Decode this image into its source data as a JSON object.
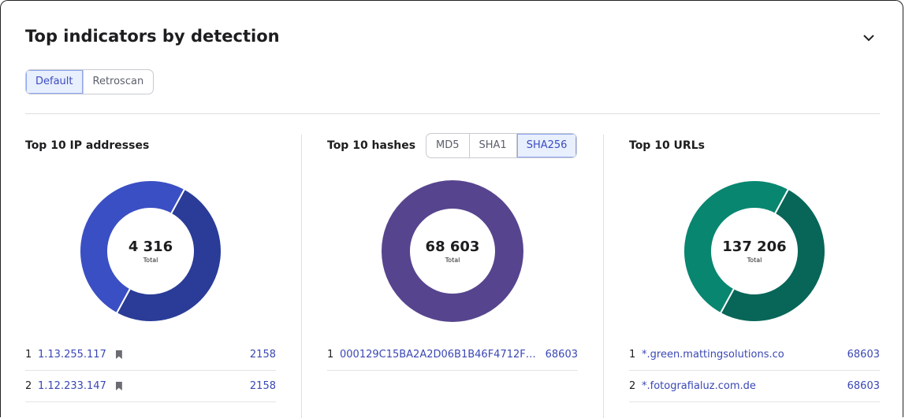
{
  "title": "Top indicators by detection",
  "mode_tabs": [
    {
      "label": "Default",
      "active": true
    },
    {
      "label": "Retroscan",
      "active": false
    }
  ],
  "panels": [
    {
      "title": "Top 10 IP addresses",
      "total": "4 316",
      "total_label": "Total",
      "colors": [
        "#2a3c98",
        "#3a4fc4"
      ],
      "values": [
        2158,
        2158
      ],
      "rows": [
        {
          "rank": "1",
          "label": "1.13.255.117",
          "count": "2158",
          "bookmark": true
        },
        {
          "rank": "2",
          "label": "1.12.233.147",
          "count": "2158",
          "bookmark": true
        }
      ]
    },
    {
      "title": "Top 10 hashes",
      "hash_tabs": [
        {
          "label": "MD5",
          "active": false
        },
        {
          "label": "SHA1",
          "active": false
        },
        {
          "label": "SHA256",
          "active": true
        }
      ],
      "total": "68 603",
      "total_label": "Total",
      "colors": [
        "#57448e"
      ],
      "values": [
        68603
      ],
      "rows": [
        {
          "rank": "1",
          "label": "000129C15BA2A2D06B1B46F4712F3F...",
          "count": "68603"
        }
      ]
    },
    {
      "title": "Top 10 URLs",
      "total": "137 206",
      "total_label": "Total",
      "colors": [
        "#076658",
        "#088670"
      ],
      "values": [
        68603,
        68603
      ],
      "rows": [
        {
          "rank": "1",
          "label": "*.green.mattingsolutions.co",
          "count": "68603"
        },
        {
          "rank": "2",
          "label": "*.fotografialuz.com.de",
          "count": "68603"
        }
      ]
    }
  ]
}
